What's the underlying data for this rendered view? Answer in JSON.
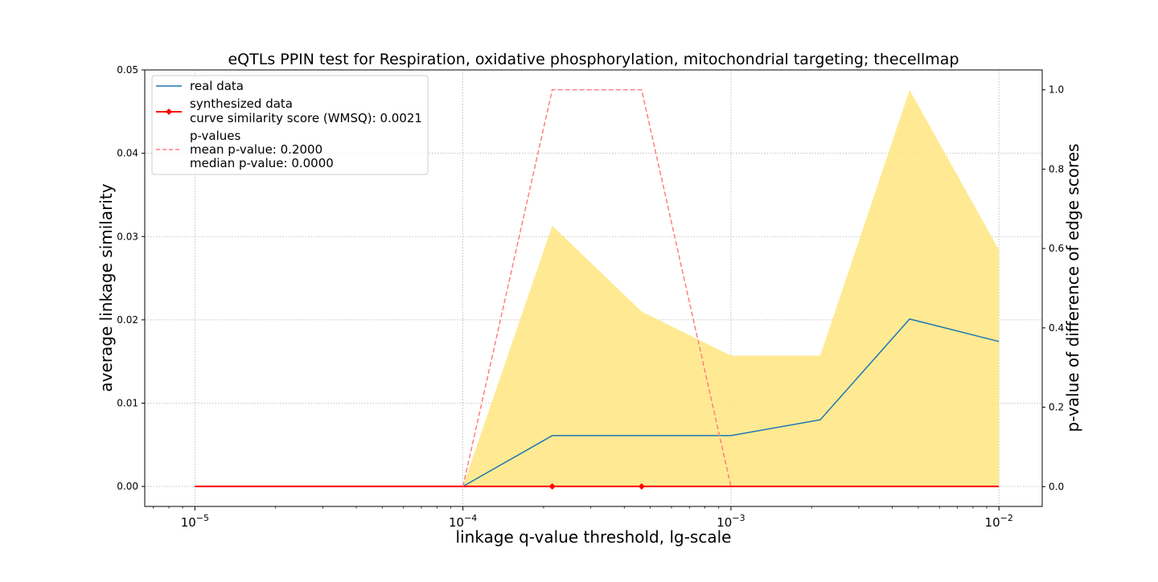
{
  "chart_data": {
    "type": "line",
    "title": "eQTLs PPIN test for Respiration, oxidative phosphorylation, mitochondrial targeting; thecellmap",
    "xlabel": "linkage q-value threshold, lg-scale",
    "ylabel": "average linkage similarity",
    "y2label": "p-value of difference of edge scores",
    "xscale": "log",
    "xlim": [
      6.5e-06,
      0.0145
    ],
    "ylim": [
      -0.0024,
      0.05
    ],
    "y2lim": [
      -0.05,
      1.05
    ],
    "x_ticks": [
      {
        "value": 1e-05,
        "base": "10",
        "exp": "−5"
      },
      {
        "value": 0.0001,
        "base": "10",
        "exp": "−4"
      },
      {
        "value": 0.001,
        "base": "10",
        "exp": "−3"
      },
      {
        "value": 0.01,
        "base": "10",
        "exp": "−2"
      }
    ],
    "y_ticks": [
      "0.00",
      "0.01",
      "0.02",
      "0.03",
      "0.04",
      "0.05"
    ],
    "y2_ticks": [
      "0.0",
      "0.2",
      "0.4",
      "0.6",
      "0.8",
      "1.0"
    ],
    "grid": true,
    "legend_position": "top-left",
    "x": [
      1e-05,
      2.154e-05,
      4.642e-05,
      0.0001,
      0.0002154,
      0.0004642,
      0.001,
      0.002154,
      0.004642,
      0.01
    ],
    "series": [
      {
        "name": "real data",
        "axis": "left",
        "color": "#1f77b4",
        "style": "solid",
        "values": [
          0,
          0,
          0,
          0,
          0.0061,
          0.0061,
          0.0061,
          0.008,
          0.0201,
          0.0174
        ]
      },
      {
        "name": "synthesized data",
        "axis": "left",
        "color": "#ff0000",
        "style": "solid-diamond",
        "values": [
          0,
          0,
          0,
          0,
          0,
          0,
          0,
          0,
          0,
          0
        ],
        "marker_indices": [
          4,
          5
        ],
        "note": "curve similarity score (WMSQ): 0.0021"
      },
      {
        "name": "p-values",
        "axis": "right",
        "color": "#ff7f7f",
        "style": "dashed",
        "values": [
          null,
          null,
          null,
          0.0,
          1.0,
          1.0,
          0.0,
          null,
          null,
          null
        ],
        "notes": [
          "mean p-value: 0.2000",
          "median p-value: 0.0000"
        ]
      }
    ],
    "band": {
      "axis": "left",
      "color": "#ffe680",
      "upper": [
        0,
        0,
        0,
        0,
        0.0313,
        0.021,
        0.0157,
        0.0157,
        0.0476,
        0.0284
      ],
      "lower": [
        0,
        0,
        0,
        0,
        0,
        0,
        0,
        0,
        0,
        0
      ]
    }
  }
}
